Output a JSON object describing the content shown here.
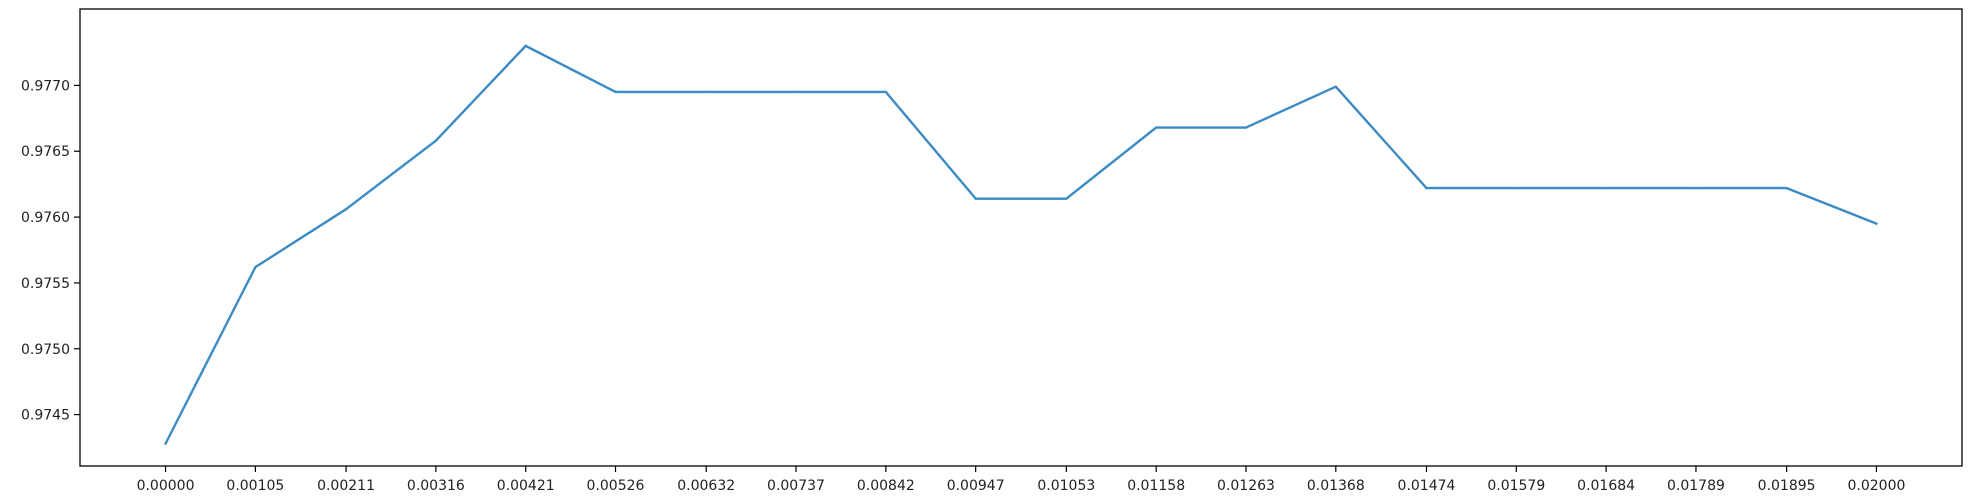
{
  "chart_data": {
    "type": "line",
    "title": "",
    "xlabel": "",
    "ylabel": "",
    "x_tick_labels": [
      "0.00000",
      "0.00105",
      "0.00211",
      "0.00316",
      "0.00421",
      "0.00526",
      "0.00632",
      "0.00737",
      "0.00842",
      "0.00947",
      "0.01053",
      "0.01158",
      "0.01263",
      "0.01368",
      "0.01474",
      "0.01579",
      "0.01684",
      "0.01789",
      "0.01895",
      "0.02000"
    ],
    "x": [
      0.0,
      0.00105,
      0.00211,
      0.00316,
      0.00421,
      0.00526,
      0.00632,
      0.00737,
      0.00842,
      0.00947,
      0.01053,
      0.01158,
      0.01263,
      0.01368,
      0.01474,
      0.01579,
      0.01684,
      0.01789,
      0.01895,
      0.02
    ],
    "y_ticks": [
      0.9745,
      0.975,
      0.9755,
      0.976,
      0.9765,
      0.977
    ],
    "y_tick_labels": [
      "0.9745",
      "0.9750",
      "0.9755",
      "0.9760",
      "0.9765",
      "0.9770"
    ],
    "ylim": [
      0.97411,
      0.97758
    ],
    "xlim": [
      -0.001,
      0.021
    ],
    "grid": false,
    "series": [
      {
        "color": "#3b8bc4",
        "values": [
          0.97428,
          0.97562,
          0.97606,
          0.97658,
          0.9773,
          0.97695,
          0.97695,
          0.97695,
          0.97695,
          0.97614,
          0.97614,
          0.97668,
          0.97668,
          0.97699,
          0.97622,
          0.97622,
          0.97622,
          0.97622,
          0.97622,
          0.97595
        ]
      }
    ]
  }
}
